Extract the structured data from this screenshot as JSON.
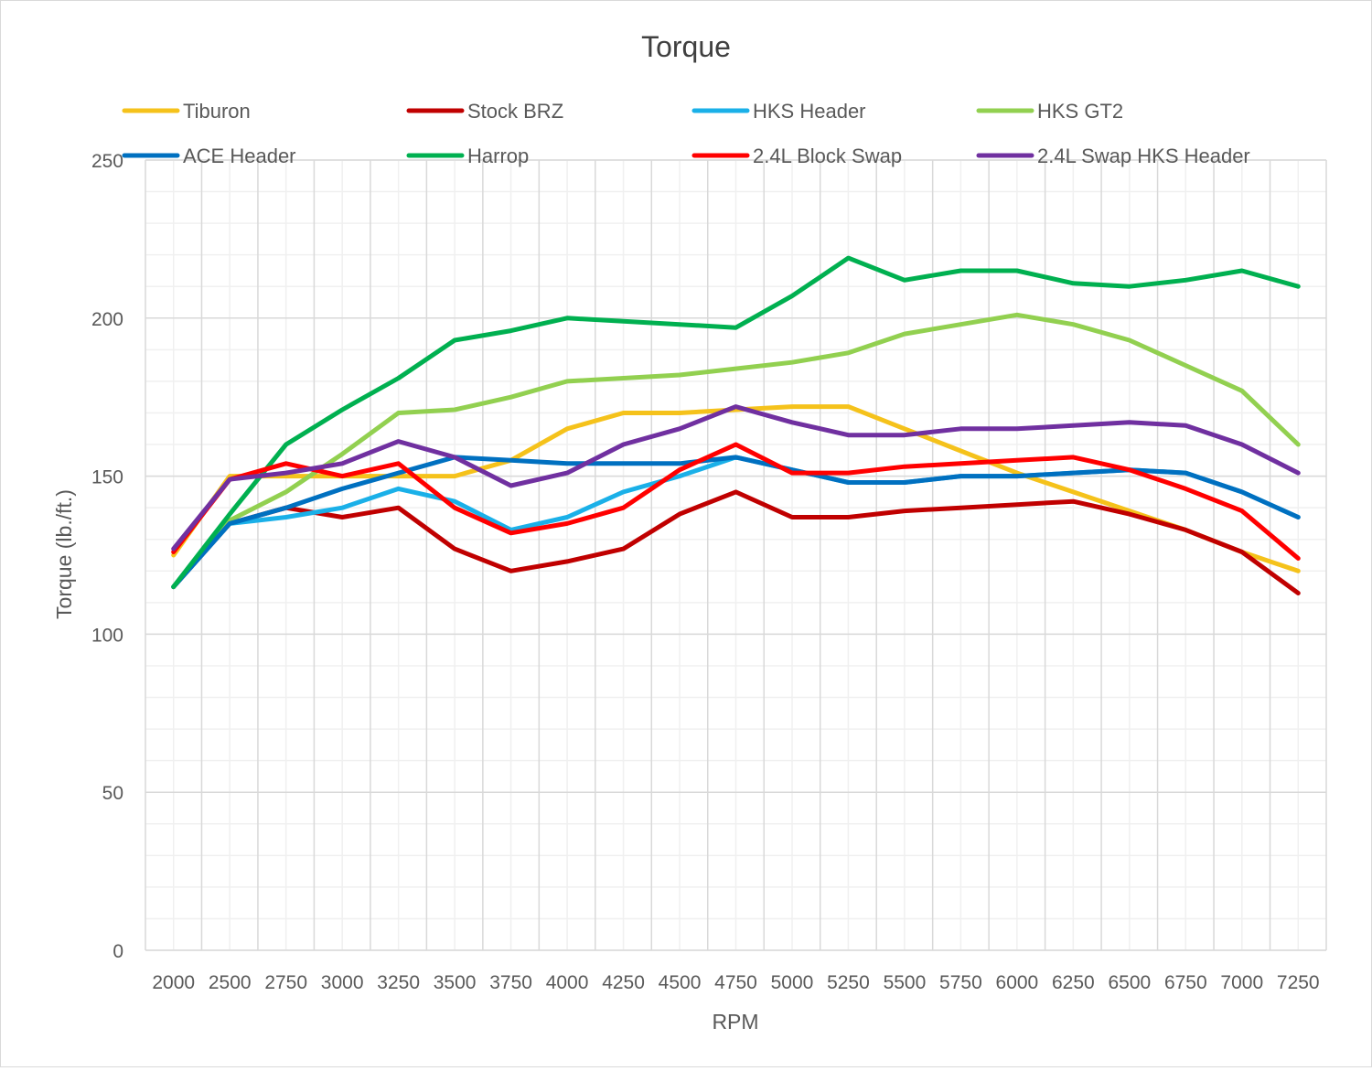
{
  "chart_data": {
    "type": "line",
    "title": "Torque",
    "xlabel": "RPM",
    "ylabel": "Torque (lb./ft.)",
    "ylim": [
      0,
      250
    ],
    "yticks": [
      0,
      50,
      100,
      150,
      200,
      250
    ],
    "grid": "major and minor",
    "legend_position": "top",
    "categories": [
      "2000",
      "2500",
      "2750",
      "3000",
      "3250",
      "3500",
      "3750",
      "4000",
      "4250",
      "4500",
      "4750",
      "5000",
      "5250",
      "5500",
      "5750",
      "6000",
      "6250",
      "6500",
      "6750",
      "7000",
      "7250"
    ],
    "series": [
      {
        "name": "Tiburon",
        "color": "#f5c21b",
        "values": [
          125,
          150,
          150,
          150,
          150,
          150,
          155,
          165,
          170,
          170,
          171,
          172,
          172,
          165,
          158,
          151,
          145,
          139,
          133,
          126,
          120
        ]
      },
      {
        "name": "Stock BRZ",
        "color": "#c00000",
        "values": [
          115,
          135,
          140,
          137,
          140,
          127,
          120,
          123,
          127,
          138,
          145,
          137,
          137,
          139,
          140,
          141,
          142,
          138,
          133,
          126,
          113
        ]
      },
      {
        "name": "HKS Header",
        "color": "#1ab0e8",
        "values": [
          115,
          135,
          137,
          140,
          146,
          142,
          133,
          137,
          145,
          150,
          156,
          152,
          148,
          148,
          150,
          150,
          151,
          152,
          151,
          145,
          137
        ]
      },
      {
        "name": "HKS GT2",
        "color": "#92d050",
        "values": [
          115,
          136,
          145,
          157,
          170,
          171,
          175,
          180,
          181,
          182,
          184,
          186,
          189,
          195,
          198,
          201,
          198,
          193,
          185,
          177,
          160
        ]
      },
      {
        "name": "ACE Header",
        "color": "#0070c0",
        "values": [
          115,
          135,
          140,
          146,
          151,
          156,
          155,
          154,
          154,
          154,
          156,
          152,
          148,
          148,
          150,
          150,
          151,
          152,
          151,
          145,
          137
        ]
      },
      {
        "name": "Harrop",
        "color": "#00b050",
        "values": [
          115,
          138,
          160,
          171,
          181,
          193,
          196,
          200,
          199,
          198,
          197,
          207,
          219,
          212,
          215,
          215,
          211,
          210,
          212,
          215,
          210
        ]
      },
      {
        "name": "2.4L Block Swap",
        "color": "#ff0000",
        "values": [
          126,
          149,
          154,
          150,
          154,
          140,
          132,
          135,
          140,
          152,
          160,
          151,
          151,
          153,
          154,
          155,
          156,
          152,
          146,
          139,
          124
        ]
      },
      {
        "name": "2.4L Swap HKS Header",
        "color": "#7030a0",
        "values": [
          127,
          149,
          151,
          154,
          161,
          156,
          147,
          151,
          160,
          165,
          172,
          167,
          163,
          163,
          165,
          165,
          166,
          167,
          166,
          160,
          151
        ]
      }
    ]
  }
}
